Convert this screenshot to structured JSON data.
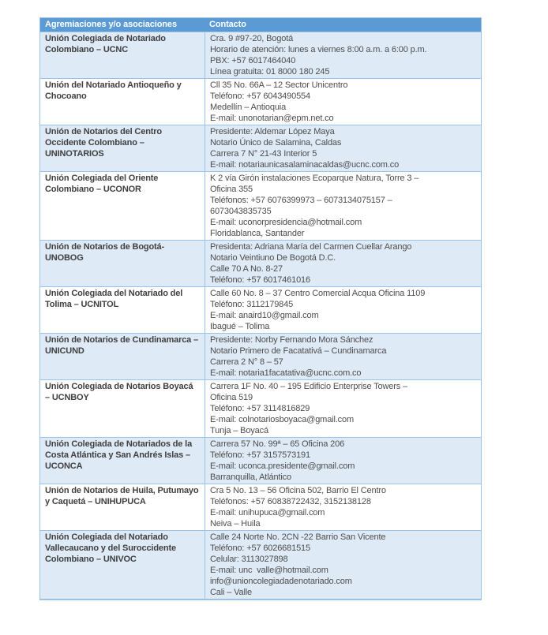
{
  "colors": {
    "header_bg": "#5B9BD5",
    "header_text": "#FFFFFF",
    "shaded_row_bg": "#DEEAF6",
    "plain_row_bg": "#FFFFFF",
    "border": "#9CC3E5",
    "name_text": "#404040",
    "contact_text": "#4D4D4D"
  },
  "table": {
    "headers": {
      "col1": "Agremiaciones y/o asociaciones",
      "col2": "Contacto"
    },
    "rows": [
      {
        "name": "Unión Colegiada de Notariado Colombiano – UCNC",
        "contact_lines": [
          "Cra. 9 #97-20, Bogotá",
          "Horario de atención: lunes a viernes 8:00 a.m. a 6:00 p.m.",
          "PBX: +57 6017464040",
          "Línea gratuita: 01 8000 180 245"
        ]
      },
      {
        "name": "Unión del Notariado Antioqueño y Chocoano",
        "contact_lines": [
          "Cll 35 No. 66A – 12 Sector Unicentro",
          "Teléfono: +57 6043490554",
          "Medellín – Antioquia",
          "E-mail: unonotarian@epm.net.co"
        ]
      },
      {
        "name": "Unión de Notarios del Centro Occidente Colombiano – UNINOTARIOS",
        "contact_lines": [
          "Presidente: Aldemar López Maya",
          "Notario Único de Salamina, Caldas",
          "Carrera 7 N° 21-43 Interior 5",
          "E-mail: notariaunicasalaminacaldas@ucnc.com.co"
        ]
      },
      {
        "name": "Unión Colegiada del Oriente Colombiano – UCONOR",
        "contact_lines": [
          "K 2 vía Girón instalaciones Ecoparque Natura, Torre 3 –",
          "Oficina 355",
          "Teléfonos: +57 6076399973 – 6073134075157 –",
          "6073043835735",
          "E-mail: uconorpresidencia@hotmail.com",
          "Floridablanca, Santander"
        ]
      },
      {
        "name": "Unión de Notarios de Bogotá- UNOBOG",
        "contact_lines": [
          "Presidenta: Adriana María del Carmen Cuellar Arango",
          "Notario Veintiuno De Bogotá D.C.",
          "Calle 70 A No. 8-27",
          "Teléfono: +57 6017461016"
        ]
      },
      {
        "name": "Unión Colegiada del Notariado del Tolima – UCNITOL",
        "contact_lines": [
          "Calle 60 No. 8 – 37 Centro Comercial Acqua Oficina 1109",
          "Teléfono: 3112179845",
          "E-mail: anaird10@gmail.com",
          "Ibagué – Tolima"
        ]
      },
      {
        "name": "Unión de Notarios de Cundinamarca – UNICUND",
        "contact_lines": [
          "Presidente: Norby Fernando Mora Sánchez",
          "Notario Primero de Facatativá – Cundinamarca",
          "Carrera 2 N° 8 – 57",
          "E-mail: notaria1facatativa@ucnc.com.co"
        ]
      },
      {
        "name": "Unión Colegiada de Notarios Boyacá – UCNBOY",
        "contact_lines": [
          "Carrera 1F No. 40 – 195 Edificio Enterprise Towers –",
          "Oficina 519",
          "Teléfono: +57 3114816829",
          "E-mail: colnotariosboyaca@gmail.com",
          "Tunja – Boyacá"
        ]
      },
      {
        "name": "Unión Colegiada de Notariados de la Costa Atlántica y San Andrés Islas – UCONCA",
        "contact_lines": [
          "Carrera 57 No. 99ª – 65 Oficina 206",
          "Teléfono: +57 3157573191",
          "E-mail: uconca.presidente@gmail.com",
          "Barranquilla, Atlántico"
        ]
      },
      {
        "name": "Unión de Notarios de Huila, Putumayo y Caquetá – UNIHUPUCA",
        "contact_lines": [
          "Cra 5 No. 13 – 56 Oficina 502, Barrio El Centro",
          "Teléfonos: +57 60838722432, 3152138128",
          "E-mail: unihupuca@gmail.com",
          "Neiva – Huila"
        ]
      },
      {
        "name": "Unión Colegiada del Notariado Vallecaucano y del Suroccidente Colombiano – UNIVOC",
        "contact_lines": [
          "Calle 24 Norte No. 2CN -22 Barrio San Vicente",
          "Teléfono: +57 6026681515",
          "Celular: 3113027898",
          "E-mail: unc  valle@hotmail.com",
          "info@unioncolegiadadenotariado.com",
          "Cali – Valle"
        ]
      }
    ]
  }
}
